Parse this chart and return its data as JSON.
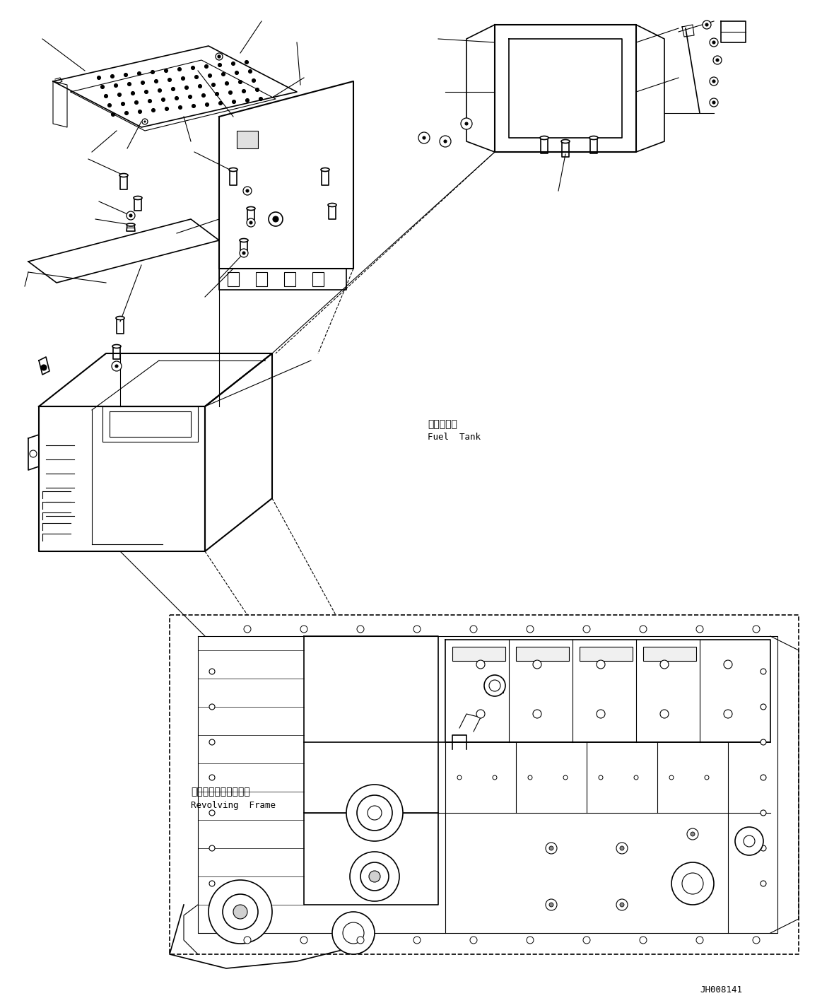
{
  "bg_color": "#ffffff",
  "line_color": "#000000",
  "fig_width": 11.63,
  "fig_height": 14.19,
  "dpi": 100,
  "label_fuel_tank_jp": "燃料タンク",
  "label_fuel_tank_en": "Fuel  Tank",
  "label_revolving_jp": "レボルビングフレーム",
  "label_revolving_en": "Revolving  Frame",
  "watermark": "JH008141"
}
